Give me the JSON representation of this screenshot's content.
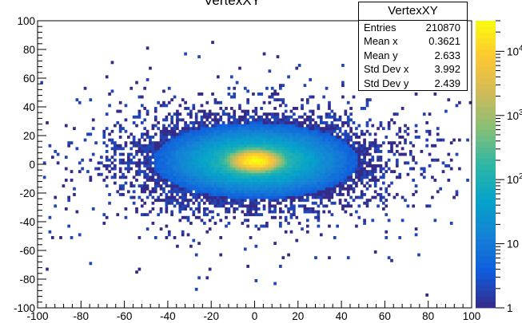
{
  "chart_data": {
    "type": "heatmap",
    "title": "VertexXY",
    "xlim": [
      -100,
      100
    ],
    "ylim": [
      -100,
      100
    ],
    "x_ticks": [
      "-100",
      "-80",
      "-60",
      "-40",
      "-20",
      "0",
      "20",
      "40",
      "60",
      "80",
      "100"
    ],
    "y_ticks": [
      "-100",
      "-80",
      "-60",
      "-40",
      "-20",
      "0",
      "20",
      "40",
      "60",
      "80",
      "100"
    ],
    "color_scale": "log",
    "z_range": [
      1,
      30000
    ],
    "colorbar_ticks": [
      "1",
      "10",
      "10^2",
      "10^3",
      "10^4"
    ],
    "colorbar_tick_values": [
      1,
      10,
      100,
      1000,
      10000
    ],
    "palette": [
      "#352a87",
      "#0f5cdd",
      "#1481d6",
      "#06a4ca",
      "#2eb7a4",
      "#87bf77",
      "#d1bb59",
      "#fec832",
      "#f9fb0e"
    ],
    "distribution": {
      "peak_x": 0.5,
      "peak_y": 2.5,
      "peak_count": 30000,
      "std_x": 3.992,
      "std_y": 2.439
    },
    "stats": {
      "name": "VertexXY",
      "rows": [
        {
          "label": "Entries",
          "value": "210870"
        },
        {
          "label": "Mean x",
          "value": "0.3621"
        },
        {
          "label": "Mean y",
          "value": "2.633"
        },
        {
          "label": "Std Dev x",
          "value": "3.992"
        },
        {
          "label": "Std Dev y",
          "value": "2.439"
        }
      ]
    }
  }
}
